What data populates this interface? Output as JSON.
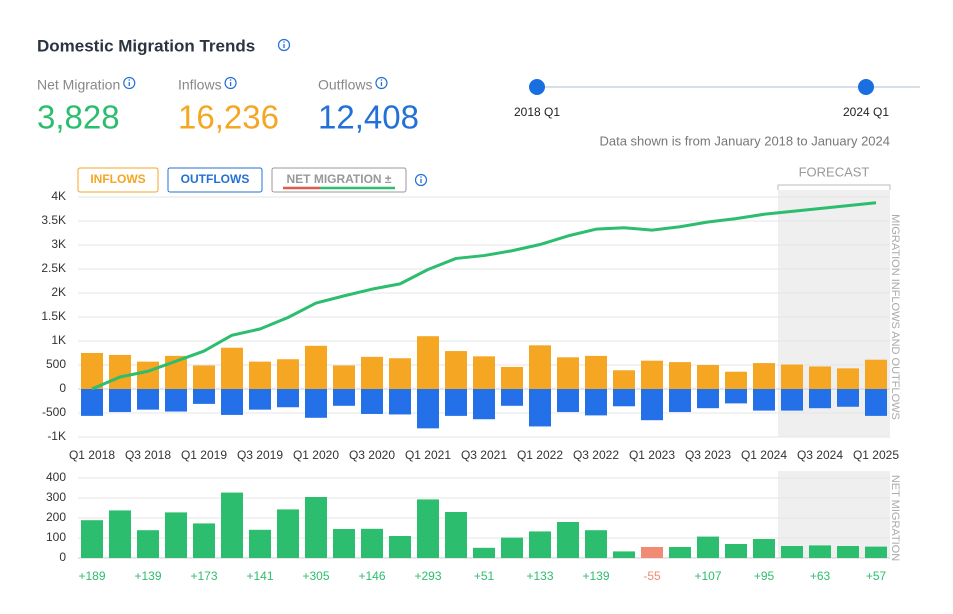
{
  "header": {
    "title": "Domestic Migration Trends",
    "stats": [
      {
        "label": "Net Migration",
        "value": "3,828",
        "color": "#2dbd6e"
      },
      {
        "label": "Inflows",
        "value": "16,236",
        "color": "#f5a623"
      },
      {
        "label": "Outflows",
        "value": "12,408",
        "color": "#2370d6"
      }
    ]
  },
  "range": {
    "start": "2018 Q1",
    "end": "2024 Q1",
    "note": "Data shown is from January 2018 to January 2024"
  },
  "toggles": [
    {
      "label": "INFLOWS",
      "color": "#f5a623"
    },
    {
      "label": "OUTFLOWS",
      "color": "#2370d6"
    },
    {
      "label": "NET MIGRATION ±",
      "color": "#999999"
    }
  ],
  "chart_data": [
    {
      "type": "combo",
      "y_label_right": "MIGRATION INFLOWS AND OUTFLOWS",
      "forecast": {
        "label": "FORECAST",
        "start_index": 25
      },
      "categories": [
        "Q1 2018",
        null,
        "Q3 2018",
        null,
        "Q1 2019",
        null,
        "Q3 2019",
        null,
        "Q1 2020",
        null,
        "Q3 2020",
        null,
        "Q1 2021",
        null,
        "Q3 2021",
        null,
        "Q1 2022",
        null,
        "Q3 2022",
        null,
        "Q1 2023",
        null,
        "Q3 2023",
        null,
        "Q1 2024",
        null,
        "Q3 2024",
        null,
        "Q1 2025"
      ],
      "series": [
        {
          "name": "Inflows",
          "type": "bar",
          "color": "#f5a623",
          "values": [
            750,
            710,
            570,
            690,
            490,
            860,
            570,
            620,
            900,
            490,
            670,
            640,
            1100,
            790,
            680,
            460,
            910,
            660,
            690,
            390,
            590,
            560,
            500,
            360,
            540,
            510,
            470,
            430,
            610
          ]
        },
        {
          "name": "Outflows",
          "type": "bar",
          "color": "#2370e8",
          "values": [
            -560,
            -480,
            -430,
            -470,
            -310,
            -540,
            -430,
            -380,
            -600,
            -350,
            -520,
            -530,
            -820,
            -560,
            -630,
            -350,
            -780,
            -480,
            -550,
            -360,
            -650,
            -480,
            -400,
            -300,
            -450,
            -450,
            -400,
            -370,
            -560
          ]
        },
        {
          "name": "Net Migration",
          "type": "line",
          "color": "#2dbd6e",
          "values": [
            0,
            250,
            370,
            580,
            790,
            1120,
            1250,
            1490,
            1790,
            1940,
            2080,
            2190,
            2490,
            2720,
            2780,
            2880,
            3010,
            3190,
            3330,
            3360,
            3310,
            3380,
            3480,
            3550,
            3640,
            3700,
            3760,
            3820,
            3880
          ]
        }
      ],
      "ylim": [
        -1000,
        4000
      ],
      "yticks": [
        {
          "value": 4000,
          "label": "4K"
        },
        {
          "value": 3500,
          "label": "3.5K"
        },
        {
          "value": 3000,
          "label": "3K"
        },
        {
          "value": 2500,
          "label": "2.5K"
        },
        {
          "value": 2000,
          "label": "2K"
        },
        {
          "value": 1500,
          "label": "1.5K"
        },
        {
          "value": 1000,
          "label": "1K"
        },
        500,
        0,
        -500,
        {
          "value": -1000,
          "label": "-1K"
        }
      ],
      "grid": true
    },
    {
      "type": "bar",
      "y_label_right": "NET MIGRATION",
      "color": "#2dbd6e",
      "negative_color": "#f28b74",
      "forecast": {
        "start_index": 25
      },
      "values": [
        189,
        238,
        139,
        228,
        173,
        327,
        141,
        243,
        305,
        145,
        146,
        110,
        293,
        230,
        51,
        102,
        133,
        180,
        139,
        33,
        -55,
        55,
        107,
        70,
        95,
        60,
        63,
        60,
        57
      ],
      "value_labels": [
        "+189",
        null,
        "+139",
        null,
        "+173",
        null,
        "+141",
        null,
        "+305",
        null,
        "+146",
        null,
        "+293",
        null,
        "+51",
        null,
        "+133",
        null,
        "+139",
        null,
        "-55",
        null,
        "+107",
        null,
        "+95",
        null,
        "+63",
        null,
        "+57"
      ],
      "ylim": [
        0,
        400
      ],
      "yticks": [
        0,
        100,
        200,
        300,
        400
      ],
      "grid": true
    }
  ]
}
